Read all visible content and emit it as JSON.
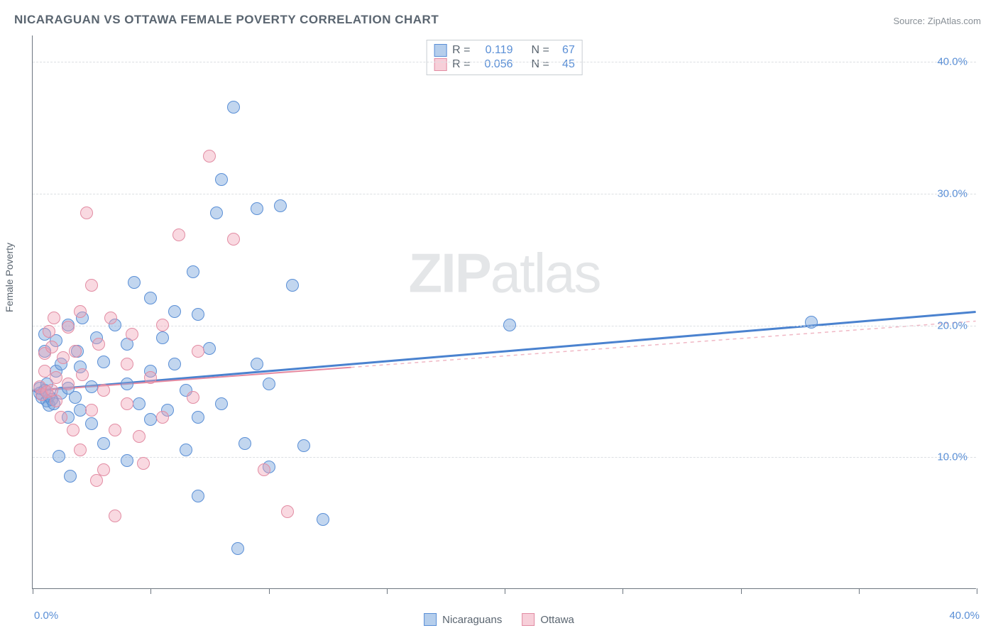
{
  "title": "NICARAGUAN VS OTTAWA FEMALE POVERTY CORRELATION CHART",
  "source_prefix": "Source: ",
  "source_name": "ZipAtlas.com",
  "watermark_a": "ZIP",
  "watermark_b": "atlas",
  "chart": {
    "type": "scatter",
    "background_color": "#ffffff",
    "grid_color": "#dcdfe3",
    "axis_color": "#6d7680",
    "ylabel": "Female Poverty",
    "label_color": "#5a6570",
    "tick_label_color": "#5a8fd6",
    "label_fontsize": 14,
    "tick_fontsize": 15,
    "xlim": [
      0,
      40
    ],
    "ylim": [
      0,
      42
    ],
    "xticks": [
      0,
      5,
      10,
      15,
      20,
      25,
      30,
      35,
      40
    ],
    "xtick_labels": {
      "0": "0.0%",
      "40": "40.0%"
    },
    "yticks": [
      10,
      20,
      30,
      40
    ],
    "ytick_labels": {
      "10": "10.0%",
      "20": "20.0%",
      "30": "30.0%",
      "40": "40.0%"
    },
    "marker_size": 18,
    "series": [
      {
        "name": "Nicaraguans",
        "color_fill": "rgba(120,165,220,0.45)",
        "color_stroke": "#5a8fd6",
        "trend_color": "#4a82cf",
        "trend_width": 3,
        "trend_dash": "none",
        "dash_extend_color": "#9ab8de",
        "r_value": "0.119",
        "n_value": "67",
        "trend": {
          "x1": 0,
          "y1": 15.0,
          "x2": 40,
          "y2": 21.0,
          "solid_until_x": 40
        },
        "points": [
          [
            0.3,
            14.8
          ],
          [
            0.3,
            15.2
          ],
          [
            0.4,
            14.5
          ],
          [
            0.5,
            15.0
          ],
          [
            0.5,
            18.0
          ],
          [
            0.5,
            19.3
          ],
          [
            0.6,
            14.2
          ],
          [
            0.6,
            15.5
          ],
          [
            0.7,
            13.9
          ],
          [
            0.7,
            14.6
          ],
          [
            0.8,
            14.3
          ],
          [
            0.9,
            14.0
          ],
          [
            1.0,
            16.5
          ],
          [
            1.0,
            18.8
          ],
          [
            1.1,
            10.0
          ],
          [
            1.2,
            14.8
          ],
          [
            1.2,
            17.0
          ],
          [
            1.5,
            13.0
          ],
          [
            1.5,
            15.2
          ],
          [
            1.5,
            20.0
          ],
          [
            1.6,
            8.5
          ],
          [
            1.8,
            14.5
          ],
          [
            1.9,
            18.0
          ],
          [
            2.0,
            13.5
          ],
          [
            2.0,
            16.8
          ],
          [
            2.1,
            20.5
          ],
          [
            2.5,
            12.5
          ],
          [
            2.5,
            15.3
          ],
          [
            2.7,
            19.0
          ],
          [
            3.0,
            11.0
          ],
          [
            3.0,
            17.2
          ],
          [
            3.5,
            20.0
          ],
          [
            4.0,
            9.7
          ],
          [
            4.0,
            15.5
          ],
          [
            4.0,
            18.5
          ],
          [
            4.3,
            23.2
          ],
          [
            4.5,
            14.0
          ],
          [
            5.0,
            12.8
          ],
          [
            5.0,
            22.0
          ],
          [
            5.0,
            16.5
          ],
          [
            5.5,
            19.0
          ],
          [
            5.7,
            13.5
          ],
          [
            6.0,
            21.0
          ],
          [
            6.0,
            17.0
          ],
          [
            6.5,
            10.5
          ],
          [
            6.5,
            15.0
          ],
          [
            6.8,
            24.0
          ],
          [
            7.0,
            7.0
          ],
          [
            7.0,
            13.0
          ],
          [
            7.0,
            20.8
          ],
          [
            7.5,
            18.2
          ],
          [
            7.8,
            28.5
          ],
          [
            8.0,
            14.0
          ],
          [
            8.0,
            31.0
          ],
          [
            8.5,
            36.5
          ],
          [
            8.7,
            3.0
          ],
          [
            9.0,
            11.0
          ],
          [
            9.5,
            17.0
          ],
          [
            9.5,
            28.8
          ],
          [
            10.0,
            9.2
          ],
          [
            10.0,
            15.5
          ],
          [
            10.5,
            29.0
          ],
          [
            11.0,
            23.0
          ],
          [
            11.5,
            10.8
          ],
          [
            12.3,
            5.2
          ],
          [
            20.2,
            20.0
          ],
          [
            33.0,
            20.2
          ]
        ]
      },
      {
        "name": "Ottawa",
        "color_fill": "rgba(240,160,180,0.40)",
        "color_stroke": "#e28ca3",
        "trend_color": "#e68aa0",
        "trend_width": 2,
        "trend_dash": "none",
        "dash_extend_color": "#f0b8c5",
        "r_value": "0.056",
        "n_value": "45",
        "trend": {
          "x1": 0,
          "y1": 15.0,
          "x2": 40,
          "y2": 20.3,
          "solid_until_x": 13.5
        },
        "points": [
          [
            0.3,
            15.3
          ],
          [
            0.4,
            14.7
          ],
          [
            0.5,
            16.5
          ],
          [
            0.5,
            17.8
          ],
          [
            0.6,
            14.9
          ],
          [
            0.7,
            19.5
          ],
          [
            0.8,
            15.0
          ],
          [
            0.8,
            18.3
          ],
          [
            0.9,
            20.5
          ],
          [
            1.0,
            14.2
          ],
          [
            1.0,
            16.0
          ],
          [
            1.2,
            13.0
          ],
          [
            1.3,
            17.5
          ],
          [
            1.5,
            19.8
          ],
          [
            1.5,
            15.5
          ],
          [
            1.7,
            12.0
          ],
          [
            1.8,
            18.0
          ],
          [
            2.0,
            10.5
          ],
          [
            2.0,
            21.0
          ],
          [
            2.1,
            16.2
          ],
          [
            2.3,
            28.5
          ],
          [
            2.5,
            13.5
          ],
          [
            2.5,
            23.0
          ],
          [
            2.7,
            8.2
          ],
          [
            2.8,
            18.5
          ],
          [
            3.0,
            15.0
          ],
          [
            3.0,
            9.0
          ],
          [
            3.3,
            20.5
          ],
          [
            3.5,
            12.0
          ],
          [
            3.5,
            5.5
          ],
          [
            4.0,
            17.0
          ],
          [
            4.0,
            14.0
          ],
          [
            4.2,
            19.3
          ],
          [
            4.5,
            11.5
          ],
          [
            4.7,
            9.5
          ],
          [
            5.0,
            16.0
          ],
          [
            5.5,
            13.0
          ],
          [
            5.5,
            20.0
          ],
          [
            6.2,
            26.8
          ],
          [
            6.8,
            14.5
          ],
          [
            7.0,
            18.0
          ],
          [
            7.5,
            32.8
          ],
          [
            8.5,
            26.5
          ],
          [
            9.8,
            9.0
          ],
          [
            10.8,
            5.8
          ]
        ]
      }
    ],
    "stats_box": {
      "r_label": "R =",
      "n_label": "N ="
    },
    "legend": {
      "items": [
        {
          "label": "Nicaraguans",
          "class": "sw-a"
        },
        {
          "label": "Ottawa",
          "class": "sw-b"
        }
      ]
    }
  }
}
